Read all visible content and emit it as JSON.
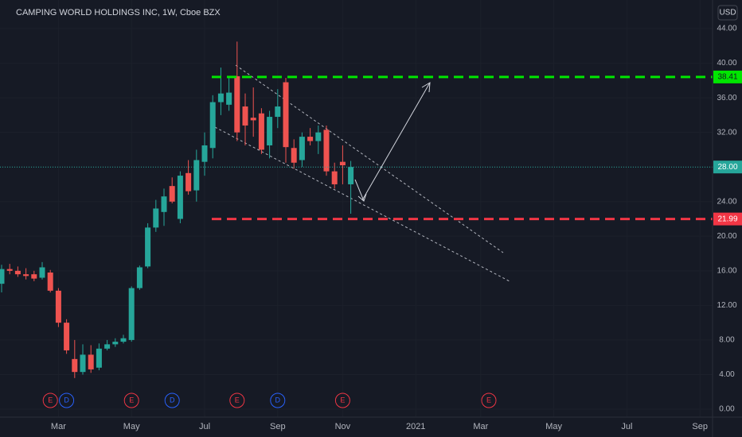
{
  "chart_data": {
    "type": "candlestick",
    "title": "CAMPING WORLD HOLDINGS INC, 1W, Cboe BZX",
    "currency": "USD",
    "categories": [
      null,
      null,
      null,
      null,
      null,
      null,
      null,
      "Mar",
      null,
      null,
      null,
      null,
      null,
      null,
      null,
      null,
      "May",
      null,
      null,
      null,
      null,
      null,
      null,
      null,
      null,
      "Jul",
      null,
      null,
      null,
      null,
      null,
      null,
      null,
      null,
      "Sep",
      null,
      null,
      null,
      null,
      null,
      null,
      null,
      "Nov",
      null,
      null,
      null,
      null,
      null,
      null,
      null,
      null,
      "2021",
      null,
      null,
      null,
      null,
      null,
      null,
      null,
      "Mar",
      null,
      null,
      null,
      null,
      null,
      null,
      null,
      null,
      "May",
      null,
      null,
      null,
      null,
      null,
      null,
      null,
      null,
      "Jul",
      null,
      null,
      null,
      null,
      null,
      null,
      null,
      null,
      "Sep",
      null
    ],
    "open": [
      14.5,
      16.2,
      16.0,
      15.6,
      15.6,
      15.2,
      15.8,
      13.7,
      10.0,
      5.8,
      4.3,
      6.3,
      4.8,
      7.0,
      7.5,
      7.8,
      8.0,
      14.0,
      16.5,
      21.0,
      22.8,
      25.8,
      22.0,
      27.3,
      25.3,
      28.6,
      30.2,
      35.5,
      35.2,
      38.5,
      35.0,
      33.7,
      34.2,
      30.5,
      33.8,
      37.8,
      30.2,
      28.8,
      31.5,
      31.0,
      32.3,
      27.5,
      28.6,
      26.0,
      null,
      null,
      null,
      null,
      null,
      null,
      null,
      null,
      null,
      null,
      null,
      null,
      null,
      null,
      null,
      null,
      null,
      null,
      null,
      null,
      null,
      null,
      null,
      null,
      null,
      null,
      null,
      null,
      null,
      null,
      null,
      null,
      null,
      null,
      null,
      null,
      null,
      null,
      null,
      null,
      null,
      null,
      null,
      null
    ],
    "high": [
      16.7,
      16.8,
      16.5,
      16.3,
      16.0,
      17.0,
      16.1,
      14.0,
      10.4,
      8.0,
      7.5,
      7.4,
      7.6,
      8.0,
      8.2,
      8.6,
      14.2,
      16.6,
      21.5,
      24.2,
      25.5,
      26.8,
      27.5,
      28.8,
      30.0,
      32.0,
      36.3,
      39.5,
      38.3,
      42.5,
      36.5,
      37.2,
      34.8,
      34.5,
      37.0,
      38.3,
      31.2,
      32.0,
      32.5,
      32.8,
      32.8,
      28.5,
      30.5,
      28.7,
      null,
      null,
      null,
      null,
      null,
      null,
      null,
      null,
      null,
      null,
      null,
      null,
      null,
      null,
      null,
      null,
      null,
      null,
      null,
      null,
      null,
      null,
      null,
      null,
      null,
      null,
      null,
      null,
      null,
      null,
      null,
      null,
      null,
      null,
      null,
      null,
      null,
      null,
      null,
      null,
      null,
      null,
      null,
      null
    ],
    "low": [
      13.5,
      15.6,
      15.3,
      15.0,
      14.8,
      15.0,
      13.5,
      9.5,
      6.4,
      3.6,
      4.0,
      4.2,
      4.5,
      6.8,
      7.2,
      7.6,
      7.8,
      13.8,
      16.3,
      20.5,
      21.2,
      23.8,
      21.5,
      24.8,
      24.0,
      27.0,
      29.0,
      34.0,
      34.5,
      31.0,
      30.5,
      31.5,
      29.5,
      29.0,
      32.5,
      28.5,
      27.8,
      28.0,
      30.5,
      29.5,
      27.0,
      25.5,
      26.0,
      22.6,
      null,
      null,
      null,
      null,
      null,
      null,
      null,
      null,
      null,
      null,
      null,
      null,
      null,
      null,
      null,
      null,
      null,
      null,
      null,
      null,
      null,
      null,
      null,
      null,
      null,
      null,
      null,
      null,
      null,
      null,
      null,
      null,
      null,
      null,
      null,
      null,
      null,
      null,
      null,
      null,
      null,
      null,
      null,
      null
    ],
    "close": [
      16.2,
      16.0,
      15.6,
      15.4,
      15.1,
      16.4,
      13.7,
      10.0,
      6.8,
      4.3,
      6.3,
      4.6,
      7.0,
      7.5,
      7.8,
      8.2,
      14.0,
      16.4,
      21.0,
      23.2,
      24.6,
      24.0,
      27.0,
      25.2,
      28.8,
      30.5,
      35.5,
      36.5,
      36.6,
      32.0,
      32.8,
      33.4,
      30.0,
      33.8,
      35.0,
      30.3,
      28.5,
      31.5,
      31.0,
      32.0,
      27.5,
      26.0,
      28.2,
      28.0,
      null,
      null,
      null,
      null,
      null,
      null,
      null,
      null,
      null,
      null,
      null,
      null,
      null,
      null,
      null,
      null,
      null,
      null,
      null,
      null,
      null,
      null,
      null,
      null,
      null,
      null,
      null,
      null,
      null,
      null,
      null,
      null,
      null,
      null,
      null,
      null,
      null,
      null,
      null,
      null,
      null,
      null,
      null,
      null
    ],
    "up_color": "#26a69a",
    "down_color": "#ef5350",
    "events": [
      null,
      null,
      null,
      null,
      null,
      null,
      "E",
      null,
      "D",
      null,
      null,
      null,
      null,
      null,
      null,
      null,
      "E",
      null,
      null,
      null,
      null,
      "D",
      null,
      null,
      null,
      null,
      null,
      null,
      null,
      "E",
      null,
      null,
      null,
      null,
      "D",
      null,
      null,
      null,
      null,
      null,
      null,
      null,
      "E",
      null,
      null,
      null,
      null,
      null,
      null,
      null,
      null,
      null,
      null,
      null,
      null,
      null,
      null,
      null,
      null,
      null,
      "E",
      null,
      null,
      null,
      null,
      null,
      null,
      null,
      null,
      null,
      null,
      null,
      null,
      null,
      null,
      null,
      null,
      null,
      null,
      null,
      null,
      null,
      null,
      null,
      null,
      null,
      null,
      null
    ],
    "event_colors": {
      "E": "#f23645",
      "D": "#2962ff"
    },
    "ylim": [
      -0.92,
      47.31
    ],
    "yticks": [
      {
        "value": 0,
        "label": "0.00"
      },
      {
        "value": 4,
        "label": "4.00"
      },
      {
        "value": 8,
        "label": "8.00"
      },
      {
        "value": 12,
        "label": "12.00"
      },
      {
        "value": 16,
        "label": "16.00"
      },
      {
        "value": 20,
        "label": "20.00"
      },
      {
        "value": 24,
        "label": "24.00"
      },
      {
        "value": 28,
        "label": "28.00"
      },
      {
        "value": 32,
        "label": "32.00"
      },
      {
        "value": 36,
        "label": "36.00"
      },
      {
        "value": 40,
        "label": "40.00"
      },
      {
        "value": 44,
        "label": "44.00"
      }
    ],
    "levels": [
      {
        "value": 38.41,
        "label": "38.41",
        "color": "#00e600",
        "text_color": "#131722",
        "style": "dashed"
      },
      {
        "value": 21.99,
        "label": "21.99",
        "color": "#f23645",
        "text_color": "#ffffff",
        "style": "dashed"
      },
      {
        "value": 28.0,
        "label": "28.00",
        "color": "#26a69a",
        "text_color": "#ffffff",
        "style": "dotted"
      }
    ]
  }
}
